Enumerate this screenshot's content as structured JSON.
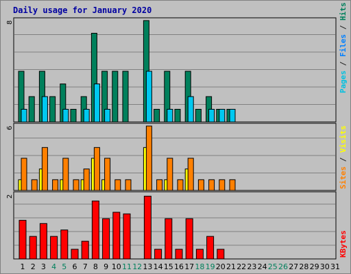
{
  "chart_data": {
    "type": "bar",
    "title": "Daily usage for January 2020",
    "title_color": "#0000a0",
    "days": [
      "1",
      "2",
      "3",
      "4",
      "5",
      "6",
      "7",
      "8",
      "9",
      "10",
      "11",
      "12",
      "13",
      "14",
      "15",
      "16",
      "17",
      "18",
      "19",
      "20",
      "21",
      "22",
      "23",
      "24",
      "25",
      "26",
      "27",
      "28",
      "29",
      "30",
      "31"
    ],
    "weekend_days": [
      "4",
      "5",
      "11",
      "12",
      "18",
      "19",
      "25",
      "26"
    ],
    "day_color": "#000000",
    "weekend_color": "#00805c",
    "panels": [
      {
        "id": "hits",
        "ymax": 8,
        "ymax_label": "8",
        "legend": [
          {
            "text": "Pages",
            "color": "#00c0e0"
          },
          {
            "text": " / ",
            "color": "#202020"
          },
          {
            "text": "Files",
            "color": "#0080ff"
          },
          {
            "text": " / ",
            "color": "#202020"
          },
          {
            "text": "Hits",
            "color": "#00805c"
          }
        ],
        "series": [
          {
            "name": "Hits",
            "color": "#00805c",
            "values": [
              4,
              2,
              4,
              2,
              3,
              1,
              2,
              7,
              4,
              4,
              4,
              0,
              8,
              1,
              4,
              1,
              4,
              1,
              2,
              1,
              1,
              0,
              0,
              0,
              0,
              0,
              0,
              0,
              0,
              0,
              0
            ]
          },
          {
            "name": "Files",
            "color": "#00c8f0",
            "values": [
              1,
              0,
              2,
              0,
              1,
              0,
              1,
              3,
              1,
              0,
              0,
              0,
              4,
              0,
              1,
              0,
              2,
              0,
              1,
              1,
              1,
              0,
              0,
              0,
              0,
              0,
              0,
              0,
              0,
              0,
              0
            ]
          }
        ]
      },
      {
        "id": "visits",
        "ymax": 6,
        "ymax_label": "6",
        "legend": [
          {
            "text": "Sites",
            "color": "#ff8000"
          },
          {
            "text": " / ",
            "color": "#202020"
          },
          {
            "text": "Visits",
            "color": "#ffff00"
          }
        ],
        "series": [
          {
            "name": "Sites",
            "color": "#ffff00",
            "values": [
              1,
              0,
              2,
              0,
              1,
              0,
              1,
              3,
              1,
              0,
              0,
              0,
              4,
              0,
              1,
              0,
              2,
              0,
              0,
              0,
              0,
              0,
              0,
              0,
              0,
              0,
              0,
              0,
              0,
              0,
              0
            ]
          },
          {
            "name": "Visits",
            "color": "#ff8000",
            "values": [
              3,
              1,
              4,
              1,
              3,
              1,
              2,
              4,
              3,
              1,
              1,
              0,
              6,
              1,
              3,
              1,
              3,
              1,
              1,
              1,
              1,
              0,
              0,
              0,
              0,
              0,
              0,
              0,
              0,
              0,
              0
            ]
          }
        ]
      },
      {
        "id": "kbytes",
        "ymax": 2,
        "ymax_label": "2",
        "legend": [
          {
            "text": "KBytes",
            "color": "#ff0000"
          }
        ],
        "series": [
          {
            "name": "KBytes",
            "color": "#ff0000",
            "values": [
              1.2,
              0.7,
              1.1,
              0.7,
              0.9,
              0.3,
              0.55,
              1.8,
              1.25,
              1.45,
              1.4,
              0,
              1.95,
              0.3,
              1.25,
              0.3,
              1.25,
              0.3,
              0.7,
              0.3,
              0,
              0,
              0,
              0,
              0,
              0,
              0,
              0,
              0,
              0,
              0
            ]
          }
        ]
      }
    ]
  }
}
